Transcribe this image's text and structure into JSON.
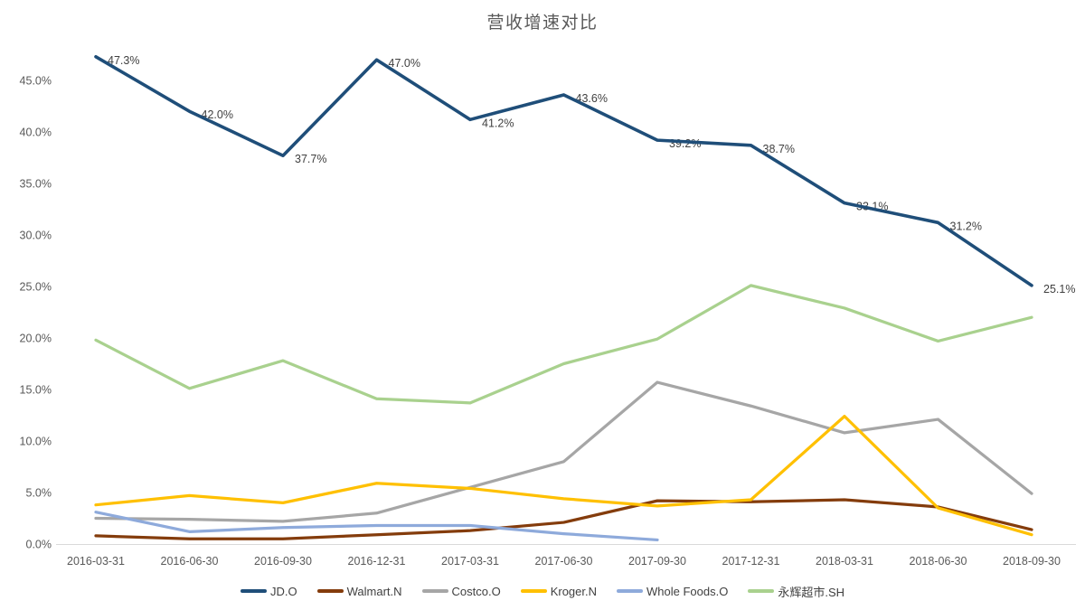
{
  "chart_data": {
    "type": "line",
    "title": "营收增速对比",
    "xlabel": "",
    "ylabel": "",
    "grid": false,
    "legend_position": "bottom",
    "background": "#FFFFFF",
    "categories": [
      "2016-03-31",
      "2016-06-30",
      "2016-09-30",
      "2016-12-31",
      "2017-03-31",
      "2017-06-30",
      "2017-09-30",
      "2017-12-31",
      "2018-03-31",
      "2018-06-30",
      "2018-09-30"
    ],
    "y_axis": {
      "min": 0,
      "max": 45,
      "step": 5,
      "unit": "%",
      "ylim": [
        0,
        48
      ],
      "tick_labels": [
        "0.0%",
        "5.0%",
        "10.0%",
        "15.0%",
        "20.0%",
        "25.0%",
        "30.0%",
        "35.0%",
        "40.0%",
        "45.0%"
      ]
    },
    "series": [
      {
        "name": "JD.O",
        "color": "#1F4E79",
        "values": [
          47.3,
          42.0,
          37.7,
          47.0,
          41.2,
          43.6,
          39.2,
          38.7,
          33.1,
          31.2,
          25.1
        ],
        "data_labels": [
          "47.3%",
          "42.0%",
          "37.7%",
          "47.0%",
          "41.2%",
          "43.6%",
          "39.2%",
          "38.7%",
          "33.1%",
          "31.2%",
          "25.1%"
        ]
      },
      {
        "name": "Walmart.N",
        "color": "#843C0C",
        "values": [
          0.8,
          0.5,
          0.5,
          0.9,
          1.3,
          2.1,
          4.2,
          4.1,
          4.3,
          3.6,
          1.4
        ]
      },
      {
        "name": "Costco.O",
        "color": "#A6A6A6",
        "values": [
          2.5,
          2.4,
          2.2,
          3.0,
          5.5,
          8.0,
          15.7,
          13.4,
          10.8,
          12.1,
          4.9
        ]
      },
      {
        "name": "Kroger.N",
        "color": "#FFC000",
        "values": [
          3.8,
          4.7,
          4.0,
          5.9,
          5.4,
          4.4,
          3.7,
          4.3,
          12.4,
          3.5,
          0.9
        ]
      },
      {
        "name": "Whole Foods.O",
        "color": "#8EAADB",
        "values": [
          3.1,
          1.2,
          1.6,
          1.8,
          1.8,
          1.0,
          0.4,
          null,
          null,
          null,
          null
        ]
      },
      {
        "name": "永辉超市.SH",
        "color": "#A9D18E",
        "values": [
          19.8,
          15.1,
          17.8,
          14.1,
          13.7,
          17.5,
          19.9,
          25.1,
          22.9,
          19.7,
          22.0
        ]
      }
    ],
    "colors": {
      "title_text": "#595959",
      "axis_tick_text": "#595959",
      "data_label_text": "#404040",
      "axis_line": "#D9D9D9"
    }
  }
}
